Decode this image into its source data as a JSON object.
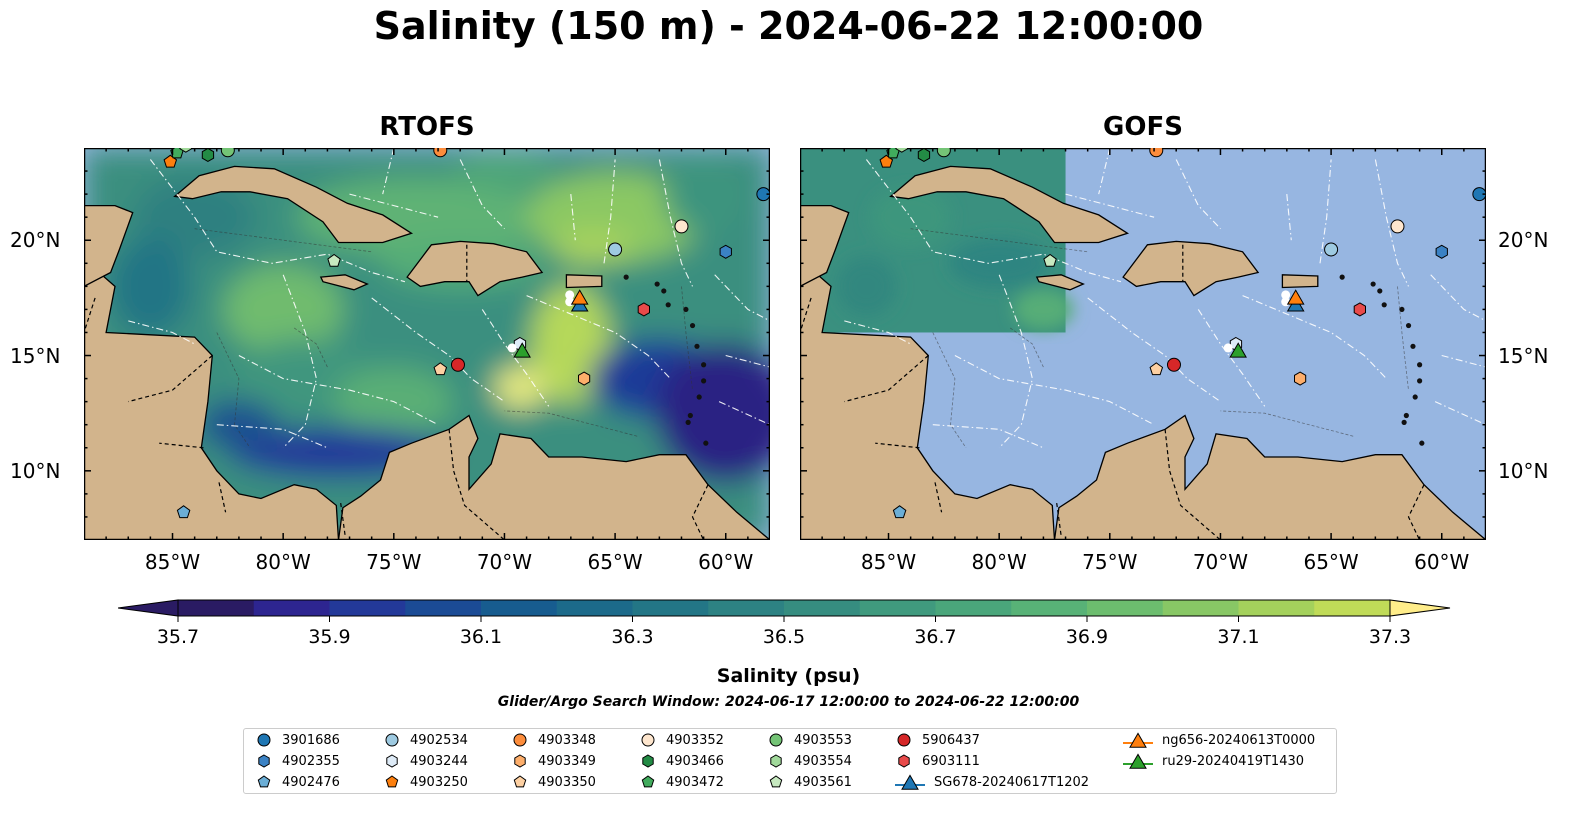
{
  "title": "Salinity (150 m) - 2024-06-22 12:00:00",
  "panels": [
    {
      "title": "RTOFS"
    },
    {
      "title": "GOFS"
    }
  ],
  "map_extent": {
    "lon": [
      -89,
      -58
    ],
    "lat": [
      7,
      24
    ]
  },
  "lon_ticks": [
    {
      "value": -85,
      "label": "85°W"
    },
    {
      "value": -80,
      "label": "80°W"
    },
    {
      "value": -75,
      "label": "75°W"
    },
    {
      "value": -70,
      "label": "70°W"
    },
    {
      "value": -65,
      "label": "65°W"
    },
    {
      "value": -60,
      "label": "60°W"
    }
  ],
  "lat_ticks": [
    {
      "value": 20,
      "label": "20°N"
    },
    {
      "value": 15,
      "label": "15°N"
    },
    {
      "value": 10,
      "label": "10°N"
    }
  ],
  "gofs_data_extent": {
    "lon": [
      -89,
      -77
    ],
    "lat": [
      16,
      24
    ]
  },
  "colorbar": {
    "label": "Salinity (psu)",
    "min": 35.6,
    "max": 37.4,
    "step": 0.1,
    "ticks": [
      "35.7",
      "35.9",
      "36.1",
      "36.3",
      "36.5",
      "36.7",
      "36.9",
      "37.1",
      "37.3"
    ],
    "colors": [
      "#2a1b63",
      "#2d2590",
      "#233999",
      "#1b4b95",
      "#175c8f",
      "#1c6a8a",
      "#237686",
      "#2d8283",
      "#368d80",
      "#409a7e",
      "#4aa67b",
      "#58b277",
      "#6cbd6e",
      "#88c765",
      "#a4d15c",
      "#c0db58",
      "#ffed8a"
    ]
  },
  "search_window": "Glider/Argo Search Window: 2024-06-17 12:00:00 to 2024-06-22 12:00:00",
  "legend": [
    {
      "label": "3901686",
      "marker": "circle",
      "color": "#1f77b4"
    },
    {
      "label": "4902355",
      "marker": "hexagon",
      "color": "#3b82c4"
    },
    {
      "label": "4902476",
      "marker": "pentagon",
      "color": "#6baed6"
    },
    {
      "label": "4902534",
      "marker": "circle",
      "color": "#9ecae1"
    },
    {
      "label": "4903244",
      "marker": "hexagon",
      "color": "#deebf7"
    },
    {
      "label": "4903250",
      "marker": "pentagon",
      "color": "#fd7f0e"
    },
    {
      "label": "4903348",
      "marker": "circle",
      "color": "#fd8d3c"
    },
    {
      "label": "4903349",
      "marker": "hexagon",
      "color": "#fdae6b"
    },
    {
      "label": "4903350",
      "marker": "pentagon",
      "color": "#fdd0a2"
    },
    {
      "label": "4903352",
      "marker": "circle",
      "color": "#fee6ce"
    },
    {
      "label": "4903466",
      "marker": "hexagon",
      "color": "#238b45"
    },
    {
      "label": "4903472",
      "marker": "pentagon",
      "color": "#41ab5d"
    },
    {
      "label": "4903553",
      "marker": "circle",
      "color": "#74c476"
    },
    {
      "label": "4903554",
      "marker": "hexagon",
      "color": "#a1d99b"
    },
    {
      "label": "4903561",
      "marker": "pentagon",
      "color": "#c7e9c0"
    },
    {
      "label": "5906437",
      "marker": "circle",
      "color": "#d62728"
    },
    {
      "label": "6903111",
      "marker": "hexagon",
      "color": "#e84a4a"
    },
    {
      "label": "SG678-20240617T1202",
      "marker": "triangle-line",
      "color": "#1f77b4"
    },
    {
      "label": "ng656-20240613T0000",
      "marker": "triangle-line",
      "color": "#ff7f0e"
    },
    {
      "label": "ru29-20240419T1430",
      "marker": "triangle-line",
      "color": "#2ca02c"
    }
  ],
  "floats": [
    {
      "id": "3901686",
      "lon": -58.3,
      "lat": 22.0
    },
    {
      "id": "4902355",
      "lon": -60.0,
      "lat": 19.5
    },
    {
      "id": "4902476",
      "lon": -84.5,
      "lat": 8.2
    },
    {
      "id": "4902534",
      "lon": -65.0,
      "lat": 19.6
    },
    {
      "id": "4903244",
      "lon": -69.3,
      "lat": 15.5
    },
    {
      "id": "4903250",
      "lon": -85.1,
      "lat": 23.4
    },
    {
      "id": "4903348",
      "lon": -72.9,
      "lat": 23.9
    },
    {
      "id": "4903349",
      "lon": -66.4,
      "lat": 14.0
    },
    {
      "id": "4903350",
      "lon": -72.9,
      "lat": 14.4
    },
    {
      "id": "4903352",
      "lon": -62.0,
      "lat": 20.6
    },
    {
      "id": "4903466",
      "lon": -83.4,
      "lat": 23.7
    },
    {
      "id": "4903472",
      "lon": -84.8,
      "lat": 23.8
    },
    {
      "id": "4903553",
      "lon": -82.5,
      "lat": 23.9
    },
    {
      "id": "4903554",
      "lon": -84.4,
      "lat": 24.1
    },
    {
      "id": "4903561",
      "lon": -77.7,
      "lat": 19.1
    },
    {
      "id": "5906437",
      "lon": -72.1,
      "lat": 14.6
    },
    {
      "id": "6903111",
      "lon": -63.7,
      "lat": 17.0
    }
  ],
  "gliders": [
    {
      "id": "SG678-20240617T1202",
      "lon": -66.6,
      "lat": 17.2
    },
    {
      "id": "ng656-20240613T0000",
      "lon": -66.6,
      "lat": 17.5
    },
    {
      "id": "ru29-20240419T1430",
      "lon": -69.2,
      "lat": 15.2
    }
  ]
}
